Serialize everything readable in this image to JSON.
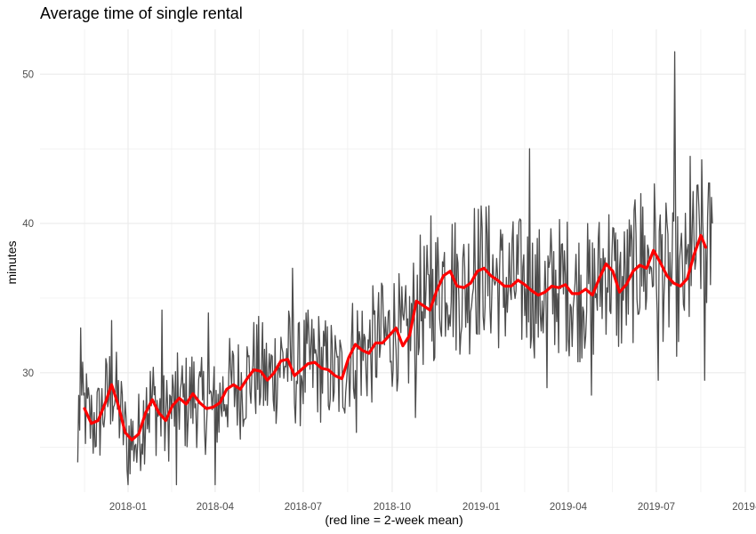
{
  "chart_data": {
    "type": "line",
    "title": "Average time of single rental",
    "xlabel": "(red line = 2-week mean)",
    "ylabel": "minutes",
    "x_range": [
      "2017-10-02",
      "2019-10-01"
    ],
    "ylim": [
      22.0,
      53.0
    ],
    "x_ticks": [
      "2018-01",
      "2018-04",
      "2018-07",
      "2018-10",
      "2019-01",
      "2019-04",
      "2019-07",
      "2019-"
    ],
    "x_tick_dates": [
      "2018-01-01",
      "2018-04-01",
      "2018-07-01",
      "2018-10-01",
      "2019-01-01",
      "2019-04-01",
      "2019-07-01",
      "2019-10-01"
    ],
    "y_ticks": [
      30,
      40,
      50
    ],
    "grid": true,
    "colors": {
      "daily": "#4d4d4d",
      "mean": "#ff0000",
      "grid": "#ebebeb"
    },
    "series": [
      {
        "kind": "daily",
        "start_date": "2017-11-10",
        "end_date": "2019-08-28",
        "summary_points": [
          {
            "date": "2017-11-10",
            "value": 24
          },
          {
            "date": "2017-11-13",
            "value": 33
          },
          {
            "date": "2017-11-25",
            "value": 27
          },
          {
            "date": "2017-12-15",
            "value": 33.5
          },
          {
            "date": "2018-01-01",
            "value": 22.5
          },
          {
            "date": "2018-01-10",
            "value": 24
          },
          {
            "date": "2018-01-20",
            "value": 29
          },
          {
            "date": "2018-02-05",
            "value": 34.2
          },
          {
            "date": "2018-02-20",
            "value": 22.5
          },
          {
            "date": "2018-03-25",
            "value": 34
          },
          {
            "date": "2018-04-01",
            "value": 22.5
          },
          {
            "date": "2018-05-10",
            "value": 30.5
          },
          {
            "date": "2018-06-20",
            "value": 37
          },
          {
            "date": "2018-08-25",
            "value": 26
          },
          {
            "date": "2018-09-20",
            "value": 36
          },
          {
            "date": "2018-10-25",
            "value": 27
          },
          {
            "date": "2018-11-10",
            "value": 40.5
          },
          {
            "date": "2018-12-25",
            "value": 41
          },
          {
            "date": "2019-02-20",
            "value": 45
          },
          {
            "date": "2019-03-10",
            "value": 29
          },
          {
            "date": "2019-04-25",
            "value": 28.5
          },
          {
            "date": "2019-06-15",
            "value": 42
          },
          {
            "date": "2019-07-03",
            "value": 29.5
          },
          {
            "date": "2019-07-20",
            "value": 51.5
          },
          {
            "date": "2019-08-05",
            "value": 44.5
          },
          {
            "date": "2019-08-20",
            "value": 29.5
          },
          {
            "date": "2019-08-28",
            "value": 40
          }
        ]
      },
      {
        "name": "2-week mean",
        "kind": "mean",
        "dates": [
          "2017-11-17",
          "2017-11-24",
          "2017-12-01",
          "2017-12-08",
          "2017-12-15",
          "2017-12-22",
          "2017-12-29",
          "2018-01-05",
          "2018-01-12",
          "2018-01-19",
          "2018-01-26",
          "2018-02-02",
          "2018-02-09",
          "2018-02-16",
          "2018-02-23",
          "2018-03-02",
          "2018-03-09",
          "2018-03-16",
          "2018-03-23",
          "2018-03-30",
          "2018-04-06",
          "2018-04-13",
          "2018-04-20",
          "2018-04-27",
          "2018-05-04",
          "2018-05-11",
          "2018-05-18",
          "2018-05-25",
          "2018-06-01",
          "2018-06-08",
          "2018-06-15",
          "2018-06-22",
          "2018-06-29",
          "2018-07-06",
          "2018-07-13",
          "2018-07-20",
          "2018-07-27",
          "2018-08-03",
          "2018-08-10",
          "2018-08-17",
          "2018-08-24",
          "2018-08-31",
          "2018-09-07",
          "2018-09-14",
          "2018-09-21",
          "2018-09-28",
          "2018-10-05",
          "2018-10-12",
          "2018-10-19",
          "2018-10-26",
          "2018-11-02",
          "2018-11-09",
          "2018-11-16",
          "2018-11-23",
          "2018-11-30",
          "2018-12-07",
          "2018-12-14",
          "2018-12-21",
          "2018-12-28",
          "2019-01-04",
          "2019-01-11",
          "2019-01-18",
          "2019-01-25",
          "2019-02-01",
          "2019-02-08",
          "2019-02-15",
          "2019-02-22",
          "2019-03-01",
          "2019-03-08",
          "2019-03-15",
          "2019-03-22",
          "2019-03-29",
          "2019-04-05",
          "2019-04-12",
          "2019-04-19",
          "2019-04-26",
          "2019-05-03",
          "2019-05-10",
          "2019-05-17",
          "2019-05-24",
          "2019-05-31",
          "2019-06-07",
          "2019-06-14",
          "2019-06-21",
          "2019-06-28",
          "2019-07-05",
          "2019-07-12",
          "2019-07-19",
          "2019-07-26",
          "2019-08-02",
          "2019-08-09",
          "2019-08-16",
          "2019-08-21"
        ],
        "values": [
          27.6,
          26.6,
          26.8,
          27.9,
          29.2,
          27.8,
          26.0,
          25.5,
          25.9,
          27.3,
          28.2,
          27.3,
          26.8,
          27.8,
          28.3,
          27.9,
          28.6,
          28.0,
          27.6,
          27.7,
          28.0,
          28.9,
          29.2,
          28.9,
          29.6,
          30.2,
          30.1,
          29.5,
          30.0,
          30.8,
          30.9,
          29.8,
          30.2,
          30.6,
          30.7,
          30.3,
          30.2,
          29.8,
          29.6,
          31.0,
          31.9,
          31.5,
          31.3,
          32.0,
          32.0,
          32.5,
          33.0,
          31.8,
          32.5,
          34.8,
          34.5,
          34.2,
          35.5,
          36.5,
          36.8,
          35.8,
          35.7,
          36.0,
          36.8,
          37.0,
          36.5,
          36.2,
          35.8,
          35.8,
          36.2,
          35.9,
          35.5,
          35.2,
          35.4,
          35.8,
          35.7,
          35.9,
          35.3,
          35.3,
          35.6,
          35.2,
          36.3,
          37.3,
          36.8,
          35.4,
          35.9,
          36.8,
          37.2,
          37.0,
          38.2,
          37.4,
          36.5,
          36.0,
          35.8,
          36.3,
          37.9,
          39.2,
          38.4
        ]
      }
    ]
  }
}
